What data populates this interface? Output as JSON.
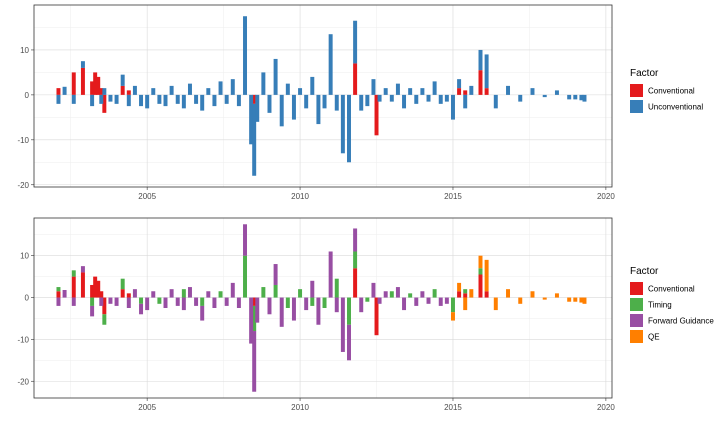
{
  "colors": {
    "Conventional": "#e41a1c",
    "Unconventional": "#377eb8",
    "Timing": "#4daf4a",
    "Forward Guidance": "#984ea3",
    "QE": "#ff7f00"
  },
  "chart_data": [
    {
      "type": "bar",
      "stacked": true,
      "xlim": [
        2001.3,
        2020.2
      ],
      "ylim": [
        -20.5,
        20.0
      ],
      "x_ticks": [
        2005,
        2010,
        2015,
        2020
      ],
      "x_tick_labels": [
        "2005",
        "2010",
        "2015",
        "2020"
      ],
      "y_ticks": [
        -20,
        -10,
        0,
        10
      ],
      "y_tick_labels": [
        "-20",
        "-10",
        "0",
        "10"
      ],
      "grid": true,
      "legend": {
        "title": "Factor",
        "position": "right",
        "items": [
          "Conventional",
          "Unconventional"
        ]
      },
      "series": [
        {
          "name": "Conventional",
          "x": [
            2002.1,
            2002.6,
            2002.9,
            2003.2,
            2003.3,
            2003.4,
            2003.5,
            2003.6,
            2004.2,
            2004.4,
            2008.5,
            2011.8,
            2012.5,
            2015.2,
            2015.4,
            2015.9,
            2016.1
          ],
          "values": [
            1.5,
            5.0,
            6.0,
            3.0,
            5.0,
            4.0,
            1.5,
            -4.0,
            2.0,
            1.0,
            -2.0,
            7.0,
            -9.0,
            1.5,
            1.0,
            5.5,
            1.5
          ]
        },
        {
          "name": "Unconventional",
          "x": [
            2002.1,
            2002.3,
            2002.6,
            2002.9,
            2003.2,
            2003.5,
            2003.6,
            2003.8,
            2004.0,
            2004.2,
            2004.4,
            2004.6,
            2004.8,
            2005.0,
            2005.2,
            2005.4,
            2005.6,
            2005.8,
            2006.0,
            2006.2,
            2006.4,
            2006.6,
            2006.8,
            2007.0,
            2007.2,
            2007.4,
            2007.6,
            2007.8,
            2008.0,
            2008.2,
            2008.4,
            2008.5,
            2008.6,
            2008.8,
            2009.0,
            2009.2,
            2009.4,
            2009.6,
            2009.8,
            2010.0,
            2010.2,
            2010.4,
            2010.6,
            2010.8,
            2011.0,
            2011.2,
            2011.4,
            2011.6,
            2011.8,
            2012.0,
            2012.2,
            2012.4,
            2012.6,
            2012.8,
            2013.0,
            2013.2,
            2013.4,
            2013.6,
            2013.8,
            2014.0,
            2014.2,
            2014.4,
            2014.6,
            2014.8,
            2015.0,
            2015.2,
            2015.4,
            2015.6,
            2015.9,
            2016.1,
            2016.4,
            2016.8,
            2017.2,
            2017.6,
            2018.0,
            2018.4,
            2018.8,
            2019.0,
            2019.2,
            2019.3
          ],
          "values": [
            -2.0,
            1.8,
            -2.0,
            1.5,
            -2.5,
            -2.0,
            1.5,
            -1.5,
            -2.0,
            2.5,
            -2.5,
            2.0,
            -2.5,
            -3.0,
            1.5,
            -2.0,
            -2.5,
            2.0,
            -2.0,
            -3.0,
            2.5,
            -2.0,
            -3.5,
            1.5,
            -2.5,
            3.0,
            -2.0,
            3.5,
            -2.5,
            17.5,
            -11.0,
            -16.0,
            -6.0,
            5.0,
            -4.0,
            8.0,
            -7.0,
            2.5,
            -5.5,
            1.5,
            -3.0,
            4.0,
            -6.5,
            -3.0,
            13.5,
            -3.5,
            -13.0,
            -15.0,
            9.5,
            -3.5,
            -2.5,
            3.5,
            -1.5,
            1.5,
            -1.5,
            2.5,
            -3.0,
            1.5,
            -2.0,
            1.5,
            -1.5,
            3.0,
            -2.0,
            -1.5,
            -5.5,
            2.0,
            -3.0,
            2.0,
            4.5,
            7.5,
            -3.0,
            2.0,
            -1.5,
            1.5,
            -0.5,
            1.0,
            -1.0,
            -1.0,
            -1.2,
            -1.5
          ]
        }
      ]
    },
    {
      "type": "bar",
      "stacked": true,
      "xlim": [
        2001.3,
        2020.2
      ],
      "ylim": [
        -24.0,
        19.0
      ],
      "x_ticks": [
        2005,
        2010,
        2015,
        2020
      ],
      "x_tick_labels": [
        "2005",
        "2010",
        "2015",
        "2020"
      ],
      "y_ticks": [
        -20,
        -10,
        0,
        10
      ],
      "y_tick_labels": [
        "-20",
        "-10",
        "0",
        "10"
      ],
      "grid": true,
      "legend": {
        "title": "Factor",
        "position": "right",
        "items": [
          "Conventional",
          "Timing",
          "Forward Guidance",
          "QE"
        ]
      },
      "series": [
        {
          "name": "Conventional",
          "x": [
            2002.1,
            2002.6,
            2002.9,
            2003.2,
            2003.3,
            2003.4,
            2003.5,
            2003.6,
            2004.2,
            2004.4,
            2008.5,
            2011.8,
            2012.5,
            2015.2,
            2015.4,
            2015.9,
            2016.1
          ],
          "values": [
            1.5,
            5.0,
            6.0,
            3.0,
            5.0,
            4.0,
            1.5,
            -4.0,
            2.0,
            1.0,
            -2.0,
            7.0,
            -9.0,
            1.5,
            1.0,
            5.5,
            1.5
          ]
        },
        {
          "name": "Timing",
          "x": [
            2002.1,
            2002.6,
            2003.2,
            2003.6,
            2004.2,
            2004.8,
            2005.4,
            2006.2,
            2006.8,
            2007.4,
            2008.2,
            2008.5,
            2008.8,
            2009.2,
            2009.6,
            2010.0,
            2010.4,
            2010.8,
            2011.2,
            2011.6,
            2011.8,
            2012.2,
            2013.0,
            2013.6,
            2014.4,
            2015.0,
            2015.4,
            2015.9
          ],
          "values": [
            1.0,
            1.5,
            -2.0,
            -2.5,
            2.5,
            -1.5,
            -1.5,
            2.0,
            -2.0,
            1.5,
            10.0,
            -6.0,
            2.5,
            3.0,
            -2.5,
            2.0,
            -2.0,
            -2.5,
            4.5,
            -6.5,
            4.0,
            -1.0,
            1.5,
            1.0,
            2.0,
            -3.5,
            1.0,
            1.5
          ]
        },
        {
          "name": "Forward Guidance",
          "x": [
            2002.1,
            2002.3,
            2002.6,
            2002.9,
            2003.2,
            2003.5,
            2003.8,
            2004.0,
            2004.4,
            2004.6,
            2004.8,
            2005.0,
            2005.2,
            2005.6,
            2005.8,
            2006.0,
            2006.2,
            2006.4,
            2006.6,
            2006.8,
            2007.0,
            2007.2,
            2007.6,
            2007.8,
            2008.0,
            2008.2,
            2008.4,
            2008.5,
            2008.6,
            2009.0,
            2009.2,
            2009.4,
            2009.8,
            2010.2,
            2010.4,
            2010.6,
            2011.0,
            2011.2,
            2011.4,
            2011.6,
            2011.8,
            2012.0,
            2012.4,
            2012.6,
            2012.8,
            2013.2,
            2013.4,
            2013.8,
            2014.0,
            2014.2,
            2014.6,
            2014.8
          ],
          "values": [
            -2.0,
            1.8,
            -2.0,
            1.5,
            -2.5,
            -2.0,
            -1.5,
            -2.0,
            -2.5,
            2.0,
            -2.5,
            -3.0,
            1.5,
            -2.5,
            2.0,
            -2.0,
            -3.0,
            2.5,
            -2.0,
            -3.5,
            1.5,
            -2.5,
            -2.0,
            3.5,
            -2.5,
            7.5,
            -11.0,
            -14.5,
            -6.0,
            -4.0,
            5.0,
            -7.0,
            -5.5,
            -3.0,
            4.0,
            -6.5,
            11.0,
            -3.5,
            -13.0,
            -8.5,
            5.5,
            -3.5,
            3.5,
            -1.5,
            1.5,
            2.5,
            -3.0,
            -2.0,
            1.5,
            -1.5,
            -2.0,
            -1.5
          ]
        },
        {
          "name": "QE",
          "x": [
            2015.0,
            2015.2,
            2015.4,
            2015.6,
            2015.9,
            2016.1,
            2016.4,
            2016.8,
            2017.2,
            2017.6,
            2018.0,
            2018.4,
            2018.8,
            2019.0,
            2019.2,
            2019.3
          ],
          "values": [
            -2.0,
            2.0,
            -3.0,
            2.0,
            3.0,
            7.5,
            -3.0,
            2.0,
            -1.5,
            1.5,
            -0.5,
            1.0,
            -1.0,
            -1.0,
            -1.2,
            -1.5
          ]
        }
      ]
    }
  ]
}
